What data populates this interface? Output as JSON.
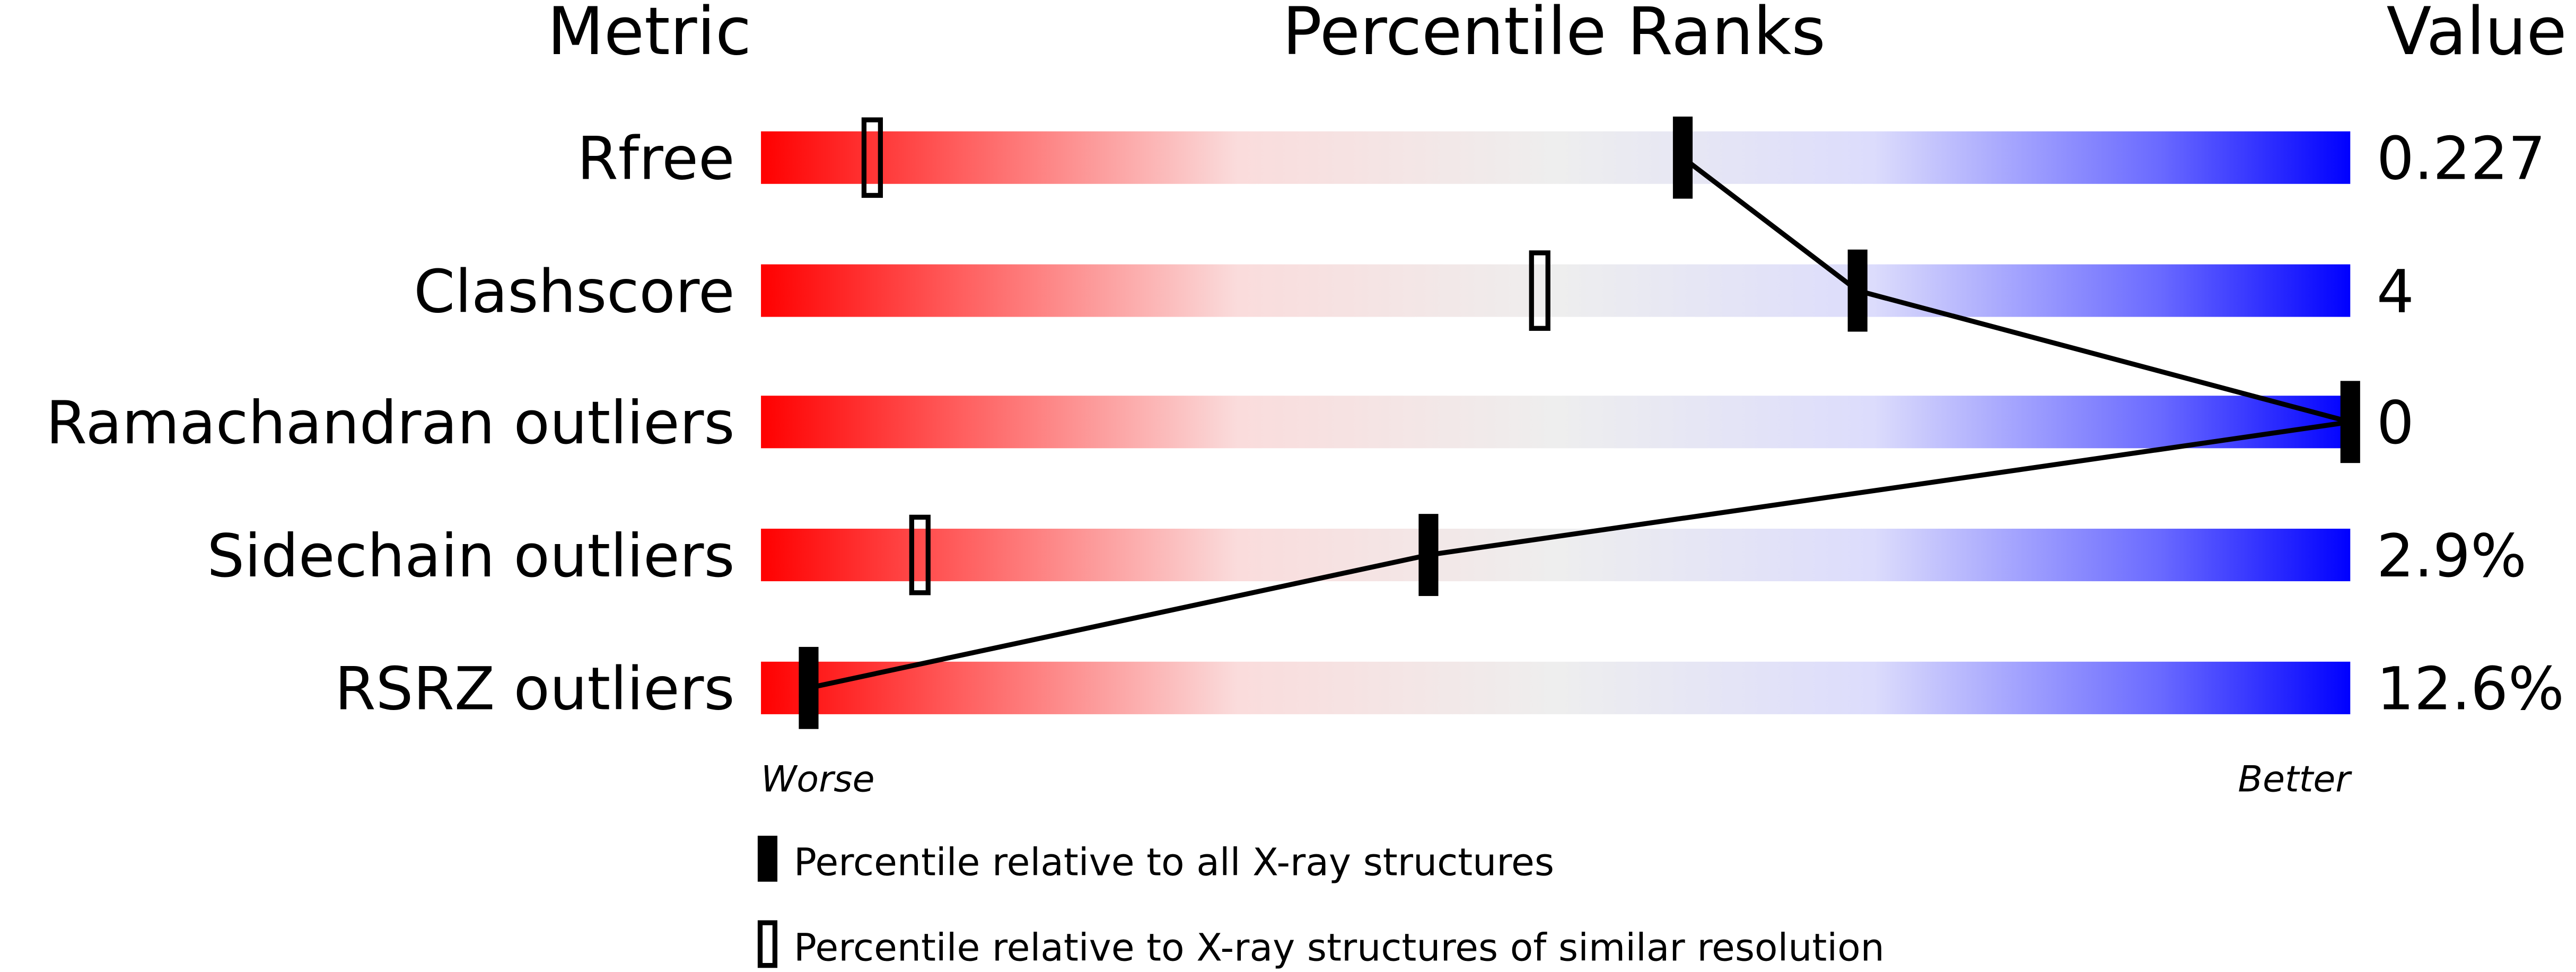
{
  "chart_data": {
    "type": "percentile-ranks",
    "headers": {
      "metric": "Metric",
      "percentile": "Percentile Ranks",
      "value": "Value"
    },
    "xlim": [
      0,
      100
    ],
    "axis_labels": {
      "left": "Worse",
      "right": "Better"
    },
    "colors": {
      "worse": "#ff0000",
      "mid": "#eeeeee",
      "better": "#0000ff"
    },
    "rows": [
      {
        "metric": "Rfree",
        "value": "0.227",
        "percentile_all": 58,
        "percentile_similar": 7
      },
      {
        "metric": "Clashscore",
        "value": "4",
        "percentile_all": 69,
        "percentile_similar": 49
      },
      {
        "metric": "Ramachandran outliers",
        "value": "0",
        "percentile_all": 100,
        "percentile_similar": null
      },
      {
        "metric": "Sidechain outliers",
        "value": "2.9%",
        "percentile_all": 42,
        "percentile_similar": 10
      },
      {
        "metric": "RSRZ outliers",
        "value": "12.6%",
        "percentile_all": 3,
        "percentile_similar": null
      }
    ],
    "legend": [
      {
        "marker": "filled",
        "label": "Percentile relative to all X-ray structures"
      },
      {
        "marker": "open",
        "label": "Percentile relative to X-ray structures of similar resolution"
      }
    ]
  }
}
